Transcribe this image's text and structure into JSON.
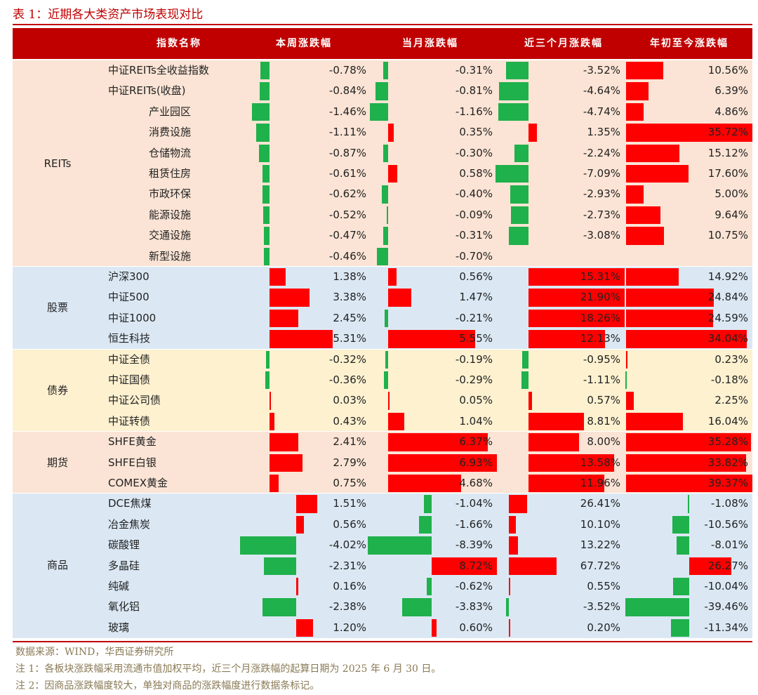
{
  "title": "表 1：近期各大类资产市场表现对比",
  "header": [
    "指数名称",
    "本周涨跌幅",
    "当月涨跌幅",
    "近三个月涨跌幅",
    "年初至今涨跌幅"
  ],
  "colors": {
    "header": "#c00000",
    "pos": "#ff0000",
    "neg": "#1fb14b",
    "reits_bg": "#fbe4d5",
    "stock_bg": "#dbe8f4",
    "bond_bg": "#fdf1d0",
    "fut_bg": "#fbe4d5",
    "comm_bg": "#dbe8f4"
  },
  "groups": [
    {
      "label": "REITs",
      "bg": "#fbe4d5",
      "rows": [
        {
          "name": "中证REITs全收益指数",
          "indent": false,
          "v": [
            -0.78,
            -0.31,
            -3.52,
            10.56
          ],
          "s": [
            "-0.78%",
            "-0.31%",
            "-3.52%",
            "10.56%"
          ]
        },
        {
          "name": "中证REITs(收盘)",
          "indent": false,
          "v": [
            -0.84,
            -0.81,
            -4.64,
            6.39
          ],
          "s": [
            "-0.84%",
            "-0.81%",
            "-4.64%",
            "6.39%"
          ]
        },
        {
          "name": "产业园区",
          "indent": true,
          "v": [
            -1.46,
            -1.16,
            -4.74,
            4.86
          ],
          "s": [
            "-1.46%",
            "-1.16%",
            "-4.74%",
            "4.86%"
          ]
        },
        {
          "name": "消费设施",
          "indent": true,
          "v": [
            -1.11,
            0.35,
            1.35,
            35.72
          ],
          "s": [
            "-1.11%",
            "0.35%",
            "1.35%",
            "35.72%"
          ]
        },
        {
          "name": "仓储物流",
          "indent": true,
          "v": [
            -0.87,
            -0.3,
            -2.24,
            15.12
          ],
          "s": [
            "-0.87%",
            "-0.30%",
            "-2.24%",
            "15.12%"
          ]
        },
        {
          "name": "租赁住房",
          "indent": true,
          "v": [
            -0.61,
            0.58,
            -7.09,
            17.6
          ],
          "s": [
            "-0.61%",
            "0.58%",
            "-7.09%",
            "17.60%"
          ]
        },
        {
          "name": "市政环保",
          "indent": true,
          "v": [
            -0.62,
            -0.4,
            -2.93,
            5.0
          ],
          "s": [
            "-0.62%",
            "-0.40%",
            "-2.93%",
            "5.00%"
          ]
        },
        {
          "name": "能源设施",
          "indent": true,
          "v": [
            -0.52,
            -0.09,
            -2.73,
            9.64
          ],
          "s": [
            "-0.52%",
            "-0.09%",
            "-2.73%",
            "9.64%"
          ]
        },
        {
          "name": "交通设施",
          "indent": true,
          "v": [
            -0.47,
            -0.31,
            -3.08,
            10.75
          ],
          "s": [
            "-0.47%",
            "-0.31%",
            "-3.08%",
            "10.75%"
          ]
        },
        {
          "name": "新型设施",
          "indent": true,
          "v": [
            -0.46,
            -0.7,
            null,
            null
          ],
          "s": [
            "-0.46%",
            "-0.70%",
            "",
            ""
          ]
        }
      ]
    },
    {
      "label": "股票",
      "bg": "#dbe8f4",
      "rows": [
        {
          "name": "沪深300",
          "indent": false,
          "v": [
            1.38,
            0.56,
            15.31,
            14.92
          ],
          "s": [
            "1.38%",
            "0.56%",
            "15.31%",
            "14.92%"
          ]
        },
        {
          "name": "中证500",
          "indent": false,
          "v": [
            3.38,
            1.47,
            21.9,
            24.84
          ],
          "s": [
            "3.38%",
            "1.47%",
            "21.90%",
            "24.84%"
          ]
        },
        {
          "name": "中证1000",
          "indent": false,
          "v": [
            2.45,
            -0.21,
            18.26,
            24.59
          ],
          "s": [
            "2.45%",
            "-0.21%",
            "18.26%",
            "24.59%"
          ]
        },
        {
          "name": "恒生科技",
          "indent": false,
          "v": [
            5.31,
            5.55,
            12.13,
            34.04
          ],
          "s": [
            "5.31%",
            "5.55%",
            "12.13%",
            "34.04%"
          ]
        }
      ]
    },
    {
      "label": "债券",
      "bg": "#fdf1d0",
      "rows": [
        {
          "name": "中证全债",
          "indent": false,
          "v": [
            -0.32,
            -0.19,
            -0.95,
            0.23
          ],
          "s": [
            "-0.32%",
            "-0.19%",
            "-0.95%",
            "0.23%"
          ]
        },
        {
          "name": "中证国债",
          "indent": false,
          "v": [
            -0.36,
            -0.29,
            -1.11,
            -0.18
          ],
          "s": [
            "-0.36%",
            "-0.29%",
            "-1.11%",
            "-0.18%"
          ]
        },
        {
          "name": "中证公司债",
          "indent": false,
          "v": [
            0.03,
            0.05,
            0.57,
            2.25
          ],
          "s": [
            "0.03%",
            "0.05%",
            "0.57%",
            "2.25%"
          ]
        },
        {
          "name": "中证转债",
          "indent": false,
          "v": [
            0.43,
            1.04,
            8.81,
            16.04
          ],
          "s": [
            "0.43%",
            "1.04%",
            "8.81%",
            "16.04%"
          ]
        }
      ]
    },
    {
      "label": "期货",
      "bg": "#fbe4d5",
      "rows": [
        {
          "name": "SHFE黄金",
          "indent": false,
          "v": [
            2.41,
            6.37,
            8.0,
            35.28
          ],
          "s": [
            "2.41%",
            "6.37%",
            "8.00%",
            "35.28%"
          ]
        },
        {
          "name": "SHFE白银",
          "indent": false,
          "v": [
            2.79,
            6.93,
            13.58,
            33.82
          ],
          "s": [
            "2.79%",
            "6.93%",
            "13.58%",
            "33.82%"
          ]
        },
        {
          "name": "COMEX黄金",
          "indent": false,
          "v": [
            0.75,
            4.68,
            11.96,
            39.37
          ],
          "s": [
            "0.75%",
            "4.68%",
            "11.96%",
            "39.37%"
          ]
        }
      ]
    },
    {
      "label": "商品",
      "bg": "#dbe8f4",
      "rows": [
        {
          "name": "DCE焦煤",
          "indent": false,
          "v": [
            1.51,
            -1.04,
            26.41,
            -1.08
          ],
          "s": [
            "1.51%",
            "-1.04%",
            "26.41%",
            "-1.08%"
          ]
        },
        {
          "name": "冶金焦炭",
          "indent": false,
          "v": [
            0.56,
            -1.66,
            10.1,
            -10.56
          ],
          "s": [
            "0.56%",
            "-1.66%",
            "10.10%",
            "-10.56%"
          ]
        },
        {
          "name": "碳酸锂",
          "indent": false,
          "v": [
            -4.02,
            -8.39,
            13.22,
            -8.01
          ],
          "s": [
            "-4.02%",
            "-8.39%",
            "13.22%",
            "-8.01%"
          ]
        },
        {
          "name": "多晶硅",
          "indent": false,
          "v": [
            -2.31,
            8.72,
            67.72,
            26.27
          ],
          "s": [
            "-2.31%",
            "8.72%",
            "67.72%",
            "26.27%"
          ]
        },
        {
          "name": "纯碱",
          "indent": false,
          "v": [
            0.16,
            -0.62,
            0.55,
            -10.04
          ],
          "s": [
            "0.16%",
            "-0.62%",
            "0.55%",
            "-10.04%"
          ]
        },
        {
          "name": "氧化铝",
          "indent": false,
          "v": [
            -2.38,
            -3.83,
            -3.52,
            -39.46
          ],
          "s": [
            "-2.38%",
            "-3.83%",
            "-3.52%",
            "-39.46%"
          ]
        },
        {
          "name": "玻璃",
          "indent": false,
          "v": [
            1.2,
            0.6,
            0.2,
            -11.34
          ],
          "s": [
            "1.20%",
            "0.60%",
            "0.20%",
            "-11.34%"
          ]
        }
      ]
    }
  ],
  "notes": [
    "数据来源：WIND，华西证券研究所",
    "注 1：各板块涨跌幅采用流通市值加权平均，近三个月涨跌幅的起算日期为 2025 年 6 月 30 日。",
    "注 2：因商品涨跌幅度较大，单独对商品的涨跌幅度进行数据条标记。"
  ]
}
